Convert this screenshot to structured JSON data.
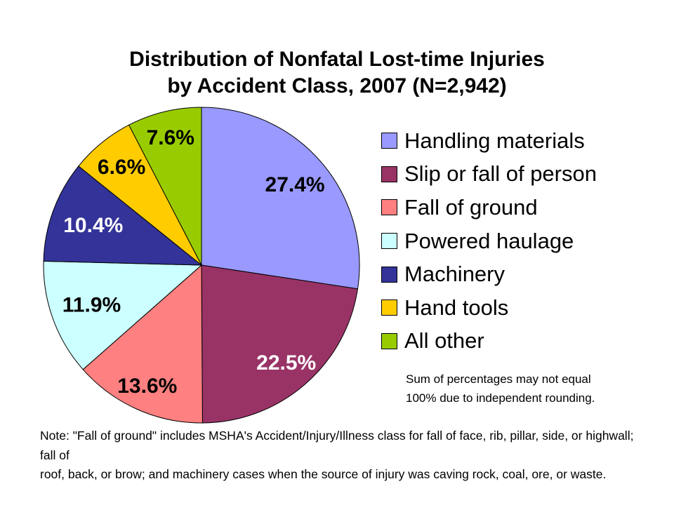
{
  "title": {
    "line1": "Distribution of Nonfatal Lost-time Injuries",
    "line2": "by Accident Class, 2007 (N=2,942)"
  },
  "chart_data": {
    "type": "pie",
    "title": "Distribution of Nonfatal Lost-time Injuries by Accident Class, 2007 (N=2,942)",
    "n_label": "N=2,942",
    "year": "2007",
    "start_angle_deg": 0,
    "direction": "clockwise",
    "legend_position": "right",
    "background": "#FFFFFF",
    "slices": [
      {
        "label": "Handling materials",
        "value": 27.4,
        "display": "27.4%",
        "color": "#9999FF",
        "label_color": "#000000",
        "label_r": 0.78
      },
      {
        "label": "Slip or fall of person",
        "value": 22.5,
        "display": "22.5%",
        "color": "#993366",
        "label_color": "#FFFFFF",
        "label_r": 0.82
      },
      {
        "label": "Fall of ground",
        "value": 13.6,
        "display": "13.6%",
        "color": "#FF8080",
        "label_color": "#000000",
        "label_r": 0.84
      },
      {
        "label": "Powered haulage",
        "value": 11.9,
        "display": "11.9%",
        "color": "#CCFFFF",
        "label_color": "#000000",
        "label_r": 0.74
      },
      {
        "label": "Machinery",
        "value": 10.4,
        "display": "10.4%",
        "color": "#333399",
        "label_color": "#FFFFFF",
        "label_r": 0.73
      },
      {
        "label": "Hand tools",
        "value": 6.6,
        "display": "6.6%",
        "color": "#FFCC00",
        "label_color": "#000000",
        "label_r": 0.8
      },
      {
        "label": "All other",
        "value": 7.6,
        "display": "7.6%",
        "color": "#99CC00",
        "label_color": "#000000",
        "label_r": 0.83
      }
    ]
  },
  "rounding_note": {
    "line1": "Sum of percentages may not equal",
    "line2": "100% due to independent rounding."
  },
  "footnote": {
    "line1": "Note: \"Fall of ground\" includes MSHA's Accident/Injury/Illness class for fall of face, rib, pillar, side, or highwall; fall of",
    "line2": "roof, back, or brow; and machinery cases when the source of injury was caving rock, coal, ore, or waste."
  }
}
